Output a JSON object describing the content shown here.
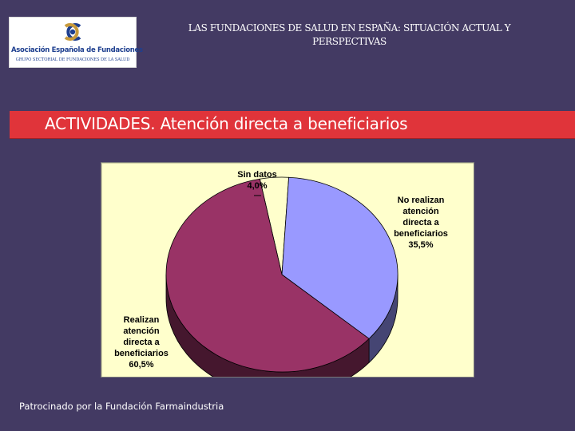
{
  "header": {
    "title_line1": "LAS FUNDACIONES DE SALUD EN ESPAÑA: SITUACIÓN ACTUAL Y",
    "title_line2": "PERSPECTIVAS"
  },
  "logo": {
    "name": "Asociación Española de Fundaciones",
    "subtitle": "GRUPO SECTORIAL DE FUNDACIONES DE LA SALUD"
  },
  "banner": {
    "text": "ACTIVIDADES. Atención directa a beneficiarios"
  },
  "footer": {
    "text": "Patrocinado por la Fundación Farmaindustria"
  },
  "colors": {
    "background": "#433a63",
    "banner": "#e0343a",
    "chart_background": "#ffffcc",
    "slice_sin_datos": "#ffffcc",
    "slice_no_realizan": "#9999ff",
    "slice_realizan": "#993366"
  },
  "chart_data": {
    "type": "pie",
    "title": "",
    "slices": [
      {
        "label": "Sin datos",
        "value": 4.0,
        "value_label": "4,0%"
      },
      {
        "label_lines": [
          "No realizan",
          "atención",
          "directa a",
          "beneficiarios"
        ],
        "value": 35.5,
        "value_label": "35,5%"
      },
      {
        "label_lines": [
          "Realizan",
          "atención",
          "directa a",
          "beneficiarios"
        ],
        "value": 60.5,
        "value_label": "60,5%"
      }
    ]
  }
}
